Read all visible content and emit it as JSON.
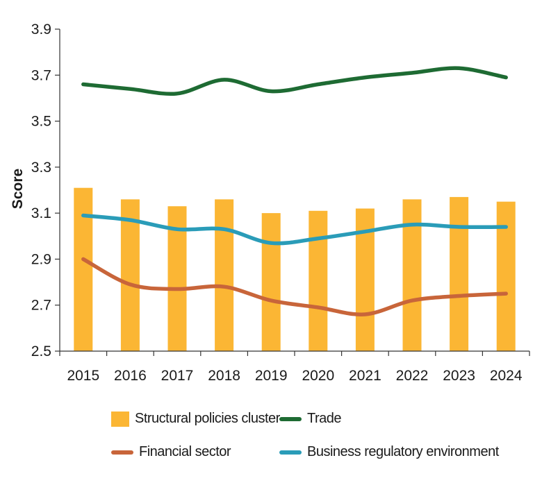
{
  "chart_data": {
    "type": "bar+line",
    "title": "",
    "xlabel": "",
    "ylabel": "Score",
    "ylim": [
      2.5,
      3.9
    ],
    "yticks": [
      "2.5",
      "2.7",
      "2.9",
      "3.1",
      "3.3",
      "3.5",
      "3.7",
      "3.9"
    ],
    "categories": [
      "2015",
      "2016",
      "2017",
      "2018",
      "2019",
      "2020",
      "2021",
      "2022",
      "2023",
      "2024"
    ],
    "bar_series": {
      "name": "Structural policies cluster",
      "color": "#FBB634",
      "values": [
        3.21,
        3.16,
        3.13,
        3.16,
        3.1,
        3.11,
        3.12,
        3.16,
        3.17,
        3.15
      ]
    },
    "line_series": [
      {
        "name": "Trade",
        "color": "#1E6B33",
        "values": [
          3.66,
          3.64,
          3.62,
          3.68,
          3.63,
          3.66,
          3.69,
          3.71,
          3.73,
          3.69
        ]
      },
      {
        "name": "Financial sector",
        "color": "#C8653A",
        "values": [
          2.9,
          2.79,
          2.77,
          2.78,
          2.72,
          2.69,
          2.66,
          2.72,
          2.74,
          2.75
        ]
      },
      {
        "name": "Business regulatory environment",
        "color": "#2A9CB8",
        "values": [
          3.09,
          3.07,
          3.03,
          3.03,
          2.97,
          2.99,
          3.02,
          3.05,
          3.04,
          3.04
        ]
      }
    ],
    "legend": [
      {
        "label": "Structural policies cluster",
        "kind": "bar",
        "color": "#FBB634"
      },
      {
        "label": "Trade",
        "kind": "line",
        "color": "#1E6B33"
      },
      {
        "label": "Financial sector",
        "kind": "line",
        "color": "#C8653A"
      },
      {
        "label": "Business regulatory environment",
        "kind": "line",
        "color": "#2A9CB8"
      }
    ]
  }
}
